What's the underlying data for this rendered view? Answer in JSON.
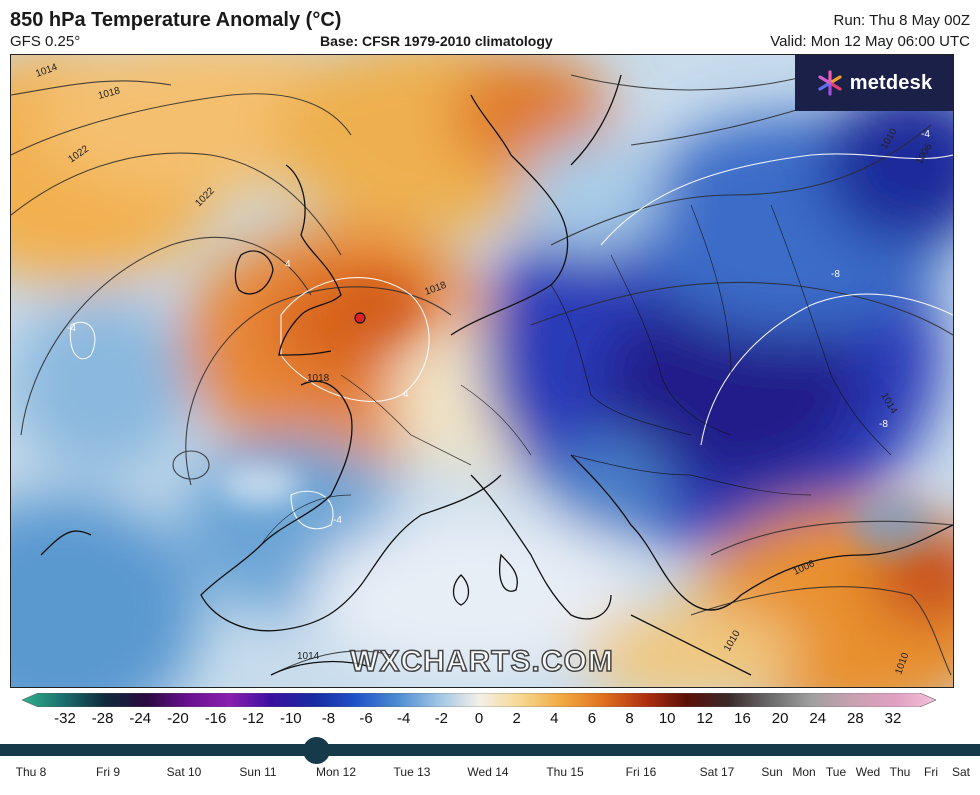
{
  "header": {
    "title": "850 hPa Temperature Anomaly (°C)",
    "model": "GFS 0.25°",
    "base": "Base: CFSR 1979-2010 climatology",
    "run": "Run: Thu 8 May 00Z",
    "valid": "Valid: Mon 12 May 06:00 UTC"
  },
  "logo": {
    "text": "metdesk",
    "background": "#1b2048"
  },
  "watermark": "WXCHARTS.COM",
  "isobar_labels": [
    "1014",
    "1018",
    "1022",
    "1022",
    "1018",
    "1018",
    "1010",
    "1006",
    "1014",
    "1010",
    "1006",
    "1014",
    "1010"
  ],
  "contour_labels": [
    "-4",
    "-4",
    "-8",
    "-8",
    "4",
    "4",
    "-4"
  ],
  "colorbar": {
    "ticks": [
      "-32",
      "-28",
      "-24",
      "-20",
      "-16",
      "-12",
      "-10",
      "-8",
      "-6",
      "-4",
      "-2",
      "0",
      "2",
      "4",
      "6",
      "8",
      "10",
      "12",
      "16",
      "20",
      "24",
      "28",
      "32"
    ],
    "colors": [
      "#2fb08a",
      "#1b6e6e",
      "#0f2a3a",
      "#2a0a40",
      "#6a1090",
      "#8a20b0",
      "#3a10a0",
      "#1a2aa0",
      "#2050c8",
      "#4a8ad0",
      "#9cc4e4",
      "#f4f0e8",
      "#f6d890",
      "#f2a840",
      "#e07020",
      "#b03010",
      "#5a1008",
      "#3a2a2a",
      "#6a6a6a",
      "#a0a0a0",
      "#c8a0b0",
      "#e0a0c0",
      "#f4c0d8"
    ]
  },
  "timeline": {
    "current": "Mon 12",
    "days": [
      "Thu 8",
      "Fri 9",
      "Sat 10",
      "Sun 11",
      "Mon 12",
      "Tue 13",
      "Wed 14",
      "Thu 15",
      "Fri 16",
      "Sat 17",
      "Sun",
      "Mon",
      "Tue",
      "Wed",
      "Thu",
      "Fri",
      "Sat"
    ]
  }
}
